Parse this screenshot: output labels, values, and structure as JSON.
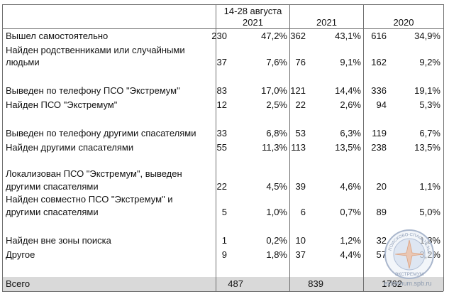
{
  "header": {
    "col1": [
      "14-28  августа",
      "2021"
    ],
    "col2": "2021",
    "col3": "2020"
  },
  "rows": [
    {
      "label": [
        "Вышел самостоятельно"
      ],
      "v1": "230",
      "p1": "47,2%",
      "v2": "362",
      "p2": "43,1%",
      "v3": "616",
      "p3": "34,9%"
    },
    {
      "label": [
        "Найден родственниками или случайными",
        "людьми"
      ],
      "v1": "37",
      "p1": "7,6%",
      "v2": "76",
      "p2": "9,1%",
      "v3": "162",
      "p3": "9,2%"
    },
    {
      "label": [
        "Выведен по телефону ПСО \"Экстремум\""
      ],
      "v1": "83",
      "p1": "17,0%",
      "v2": "121",
      "p2": "14,4%",
      "v3": "336",
      "p3": "19,1%"
    },
    {
      "label": [
        "Найден ПСО \"Экстремум\""
      ],
      "v1": "12",
      "p1": "2,5%",
      "v2": "22",
      "p2": "2,6%",
      "v3": "94",
      "p3": "5,3%"
    },
    {
      "label": [
        "Выведен по телефону другими спасателями"
      ],
      "v1": "33",
      "p1": "6,8%",
      "v2": "53",
      "p2": "6,3%",
      "v3": "119",
      "p3": "6,7%"
    },
    {
      "label": [
        "Найден другими спасателями"
      ],
      "v1": "55",
      "p1": "11,3%",
      "v2": "113",
      "p2": "13,5%",
      "v3": "238",
      "p3": "13,5%"
    },
    {
      "label": [
        "Локализован ПСО \"Экстремум\", выведен",
        "другими спасателями"
      ],
      "v1": "22",
      "p1": "4,5%",
      "v2": "39",
      "p2": "4,6%",
      "v3": "20",
      "p3": "1,1%"
    },
    {
      "label": [
        "Найден совместно ПСО \"Экстремум\" и",
        "другими спасателями"
      ],
      "v1": "5",
      "p1": "1,0%",
      "v2": "6",
      "p2": "0,7%",
      "v3": "89",
      "p3": "5,0%"
    },
    {
      "label": [
        "Найден вне зоны поиска"
      ],
      "v1": "1",
      "p1": "0,2%",
      "v2": "10",
      "p2": "1,2%",
      "v3": "32",
      "p3": "1,8%"
    },
    {
      "label": [
        "Другое"
      ],
      "v1": "9",
      "p1": "1,8%",
      "v2": "37",
      "p2": "4,4%",
      "v3": "57",
      "p3": "3,2%"
    }
  ],
  "total": {
    "label": "Всего",
    "v1": "487",
    "v2": "839",
    "v3": "1762"
  },
  "watermark": {
    "text": "extremum.spb.ru",
    "logo_arc": "ПОИСКОВО-СПАСАТЕЛЬНЫЙ",
    "logo_bottom": "ЭКСТРЕМУМ"
  }
}
